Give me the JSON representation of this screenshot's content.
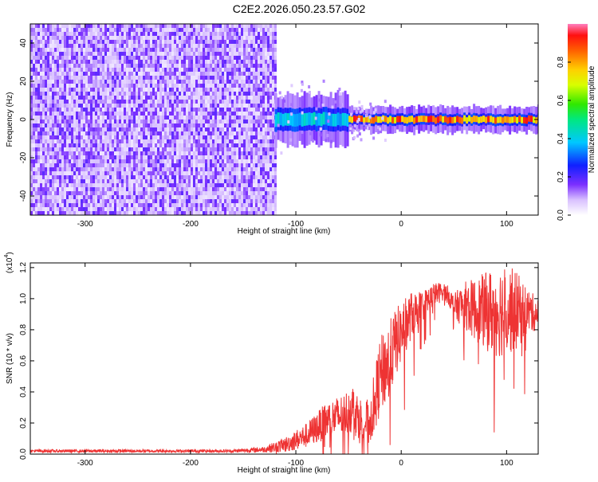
{
  "title": "C2E2.2026.050.23.57.G02",
  "colors": {
    "snr_line": "#ee3333",
    "frame": "#000000"
  },
  "chart_data": [
    {
      "type": "heatmap",
      "name": "spectrogram",
      "xlabel": "Height of straight line (km)",
      "ylabel": "Frequency (Hz)",
      "xlim": [
        -352,
        130
      ],
      "ylim": [
        -50,
        50
      ],
      "xticks": [
        -300,
        -200,
        -100,
        0,
        100
      ],
      "xtick_labels": [
        "-300",
        "-200",
        "-100",
        "0",
        "100"
      ],
      "yticks": [
        -40,
        -20,
        0,
        20,
        40
      ],
      "ytick_labels": [
        "-40",
        "-20",
        "0",
        "20",
        "40"
      ],
      "colorbar": {
        "label": "Normalized spectral amplitude",
        "range": [
          0,
          1
        ],
        "ticks": [
          0.0,
          0.2,
          0.4,
          0.6,
          0.8
        ],
        "tick_labels": [
          "0.0",
          "0.2",
          "0.4",
          "0.6",
          "0.8"
        ]
      },
      "regions": [
        {
          "kind": "noise",
          "x_from": -352,
          "x_to": -120,
          "f_from": -50,
          "f_to": 50,
          "amplitude": 0.15
        },
        {
          "kind": "signal",
          "x_from": -120,
          "x_to": -50,
          "center_hz": 0,
          "half_width_hz": 6,
          "amplitude": 0.45
        },
        {
          "kind": "signal",
          "x_from": -50,
          "x_to": 130,
          "center_hz": 0,
          "half_width_hz": 3,
          "amplitude": 0.9
        }
      ]
    },
    {
      "type": "line",
      "name": "snr",
      "xlabel": "Height of straight line (km)",
      "ylabel": "SNR (10 * v/v)",
      "yscale_label": "(x10",
      "yscale_exp": "4",
      "yscale_close": ")",
      "xlim": [
        -352,
        130
      ],
      "ylim": [
        0,
        1.23
      ],
      "xticks": [
        -300,
        -200,
        -100,
        0,
        100
      ],
      "xtick_labels": [
        "-300",
        "-200",
        "-100",
        "0",
        "100"
      ],
      "yticks": [
        0.0,
        0.2,
        0.4,
        0.6,
        0.8,
        1.0,
        1.2
      ],
      "ytick_labels": [
        "0.0",
        "0.2",
        "0.4",
        "0.6",
        "0.8",
        "1.0",
        "1.2"
      ],
      "series": [
        {
          "name": "SNR",
          "x": [
            -352,
            -250,
            -160,
            -130,
            -110,
            -90,
            -70,
            -55,
            -45,
            -40,
            -30,
            -25,
            -20,
            -12,
            -5,
            0,
            10,
            20,
            30,
            40,
            45,
            50,
            60,
            70,
            80,
            90,
            100,
            110,
            120,
            130
          ],
          "y": [
            0.02,
            0.02,
            0.02,
            0.03,
            0.06,
            0.12,
            0.22,
            0.25,
            0.3,
            0.22,
            0.2,
            0.35,
            0.5,
            0.6,
            0.72,
            0.78,
            0.9,
            0.95,
            1.02,
            1.05,
            1.02,
            0.95,
            0.96,
            0.93,
            0.92,
            0.92,
            0.93,
            0.92,
            0.92,
            0.9
          ],
          "noise": [
            0.01,
            0.01,
            0.01,
            0.02,
            0.05,
            0.08,
            0.12,
            0.14,
            0.16,
            0.15,
            0.15,
            0.2,
            0.25,
            0.25,
            0.22,
            0.2,
            0.15,
            0.1,
            0.08,
            0.06,
            0.06,
            0.08,
            0.15,
            0.2,
            0.25,
            0.3,
            0.3,
            0.25,
            0.15,
            0.1
          ]
        }
      ]
    }
  ]
}
